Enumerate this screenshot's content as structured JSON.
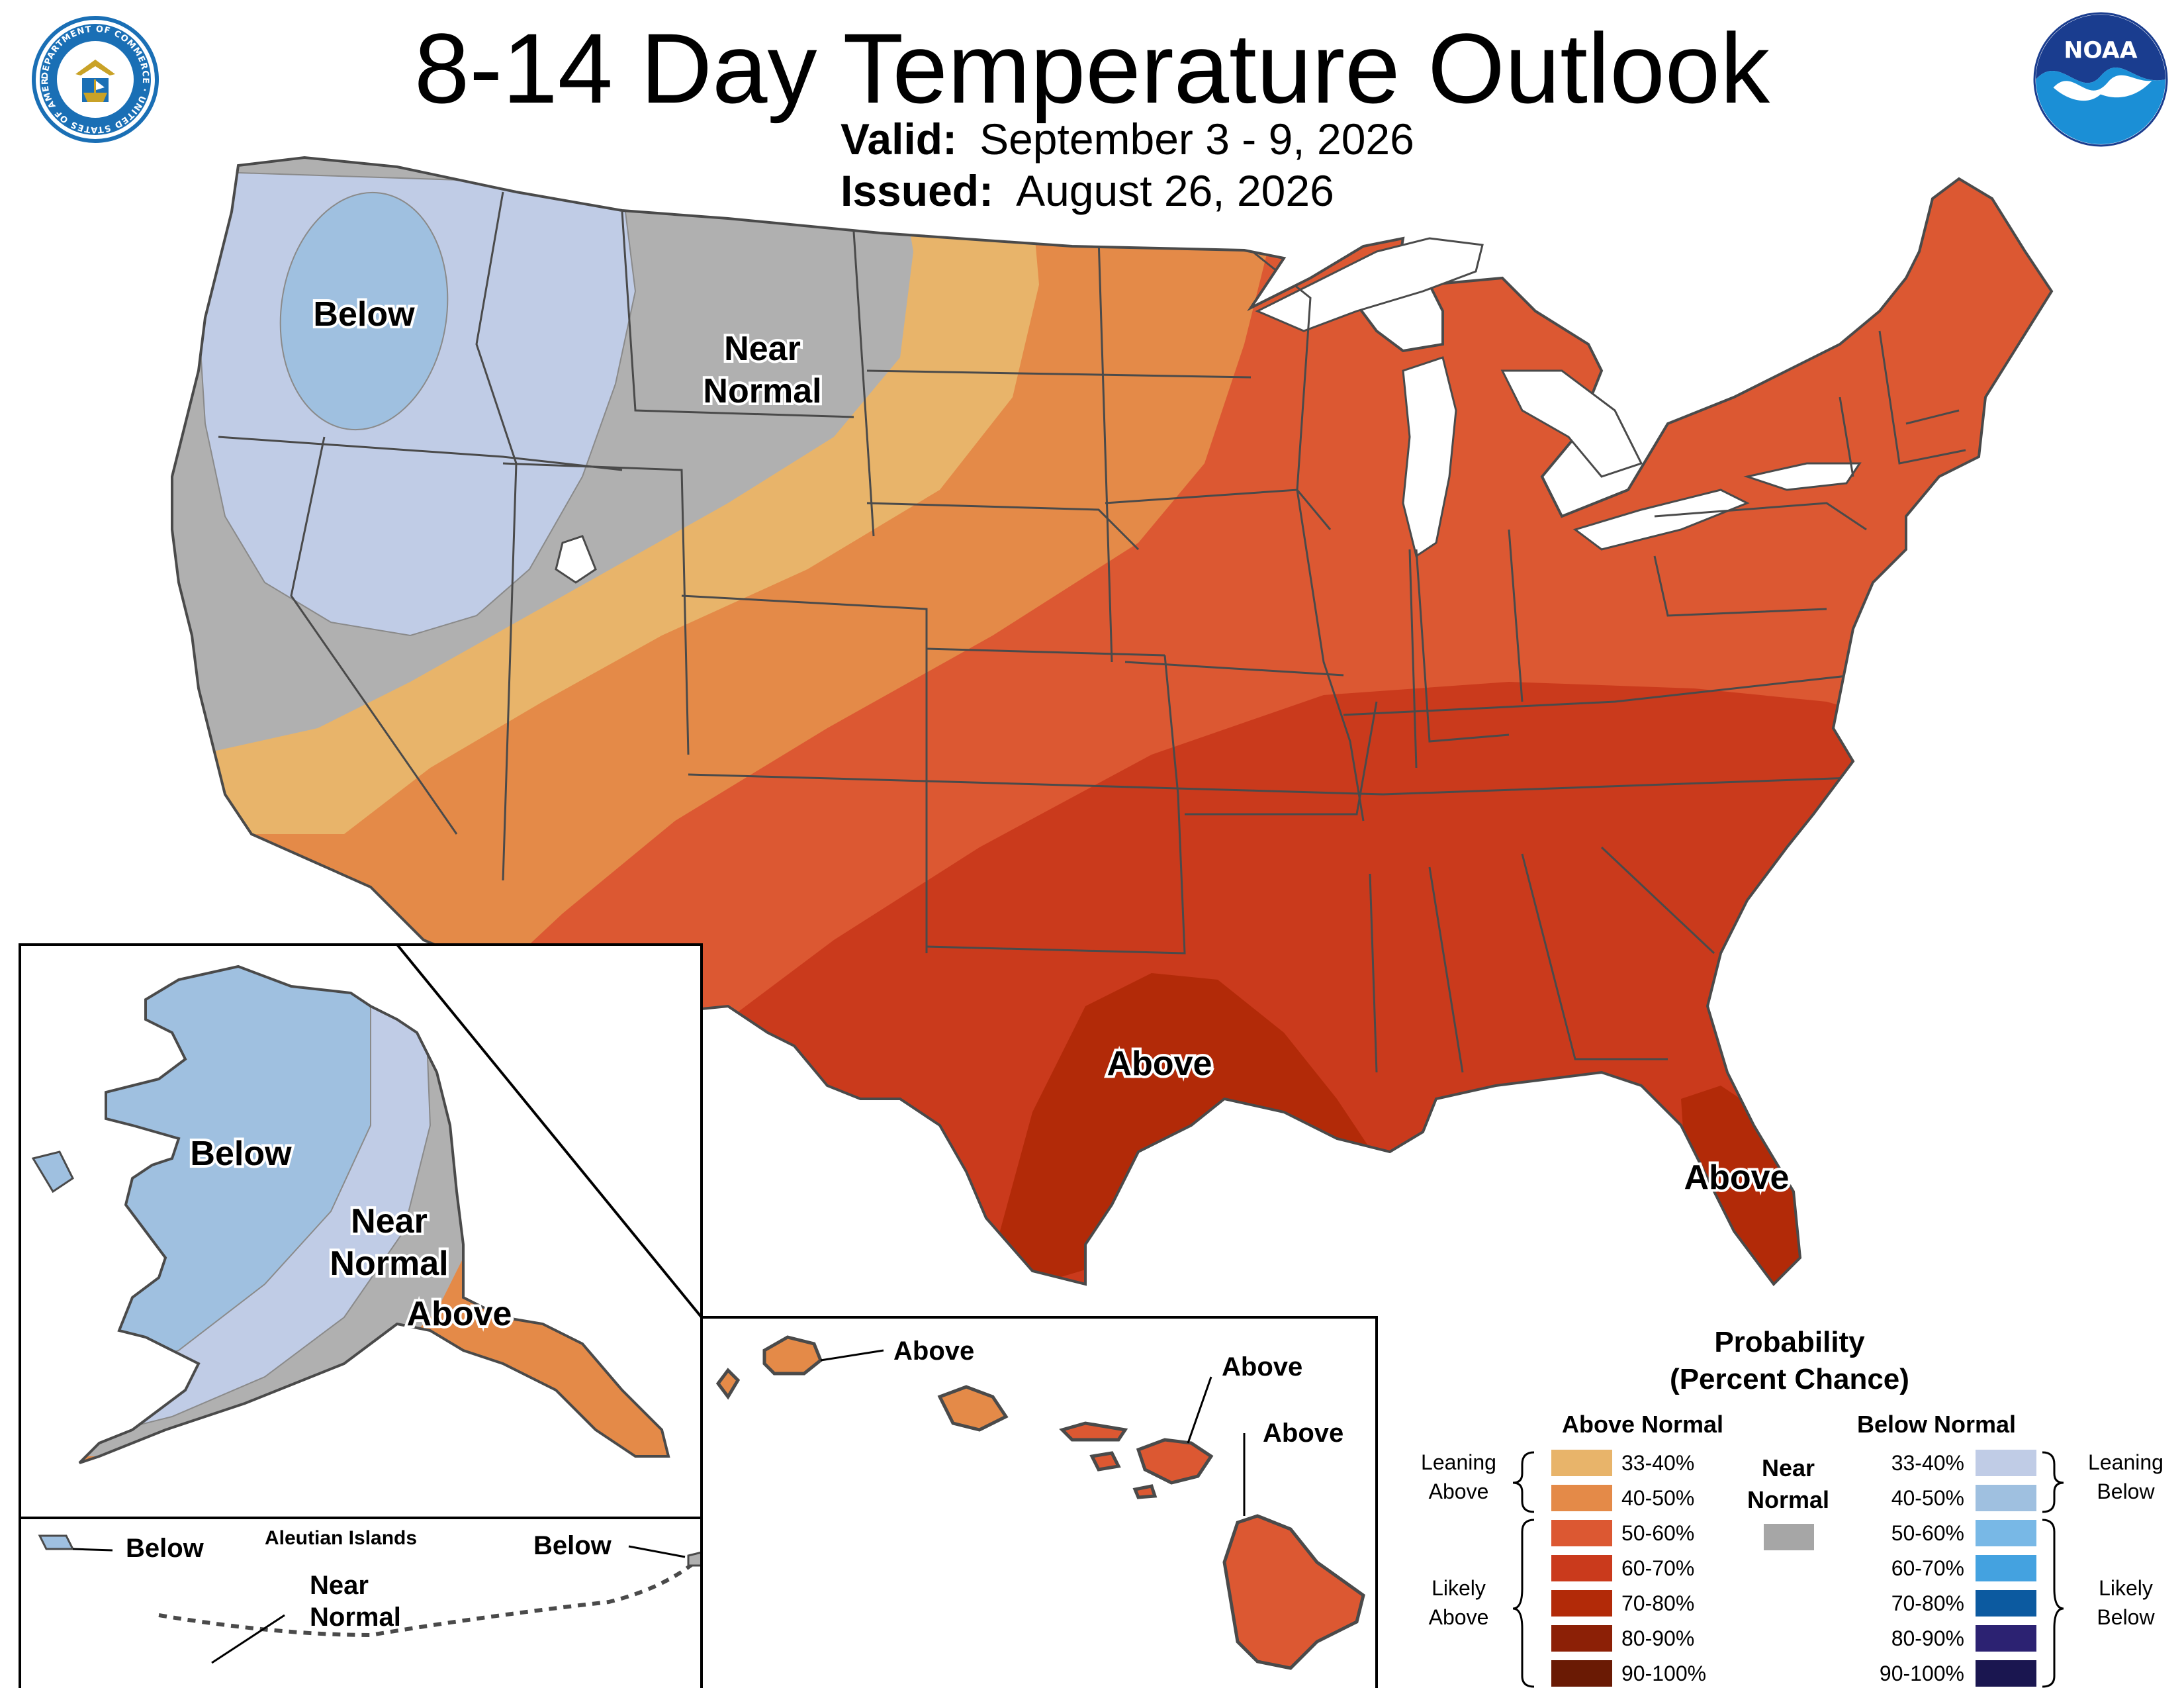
{
  "title": "8-14 Day Temperature Outlook",
  "valid_label": "Valid:",
  "valid_dates": "September 3 - 9, 2026",
  "issued_label": "Issued:",
  "issued_date": "August 26, 2026",
  "logos": {
    "left_text": "DEPARTMENT OF COMMERCE · UNITED STATES OF AMERICA",
    "right_text": "NOAA"
  },
  "map_labels": {
    "conus_below": "Below",
    "conus_near_1": "Near",
    "conus_near_2": "Normal",
    "conus_above_tx": "Above",
    "conus_above_fl": "Above",
    "ak_below": "Below",
    "ak_near_1": "Near",
    "ak_near_2": "Normal",
    "ak_above": "Above",
    "aleutian_title": "Aleutian Islands",
    "aleutian_below_w": "Below",
    "aleutian_below_e": "Below",
    "aleutian_near_1": "Near",
    "aleutian_near_2": "Normal",
    "hi_above_1": "Above",
    "hi_above_2": "Above",
    "hi_above_3": "Above"
  },
  "legend": {
    "title_1": "Probability",
    "title_2": "(Percent Chance)",
    "above_header": "Above Normal",
    "below_header": "Below Normal",
    "near_1": "Near",
    "near_2": "Normal",
    "leaning_above_1": "Leaning",
    "leaning_above_2": "Above",
    "likely_above_1": "Likely",
    "likely_above_2": "Above",
    "leaning_below_1": "Leaning",
    "leaning_below_2": "Below",
    "likely_below_1": "Likely",
    "likely_below_2": "Below",
    "above_items": [
      {
        "label": "33-40%",
        "color": "#e8b46a"
      },
      {
        "label": "40-50%",
        "color": "#e48a48"
      },
      {
        "label": "50-60%",
        "color": "#dc5832"
      },
      {
        "label": "60-70%",
        "color": "#ca3a1c"
      },
      {
        "label": "70-80%",
        "color": "#b22a08"
      },
      {
        "label": "80-90%",
        "color": "#8c2006"
      },
      {
        "label": "90-100%",
        "color": "#6a1a04"
      }
    ],
    "below_items": [
      {
        "label": "33-40%",
        "color": "#c0cce6"
      },
      {
        "label": "40-50%",
        "color": "#9fc0e0"
      },
      {
        "label": "50-60%",
        "color": "#78b8e6"
      },
      {
        "label": "60-70%",
        "color": "#44a2e0"
      },
      {
        "label": "70-80%",
        "color": "#0c5aa0"
      },
      {
        "label": "80-90%",
        "color": "#2c2272"
      },
      {
        "label": "90-100%",
        "color": "#1a1650"
      }
    ],
    "near_color": "#a6a6a6"
  },
  "colors": {
    "near_normal": "#b0b0b0",
    "state_border": "#4a4a4a",
    "noaa_blue": "#1b8fd6"
  }
}
